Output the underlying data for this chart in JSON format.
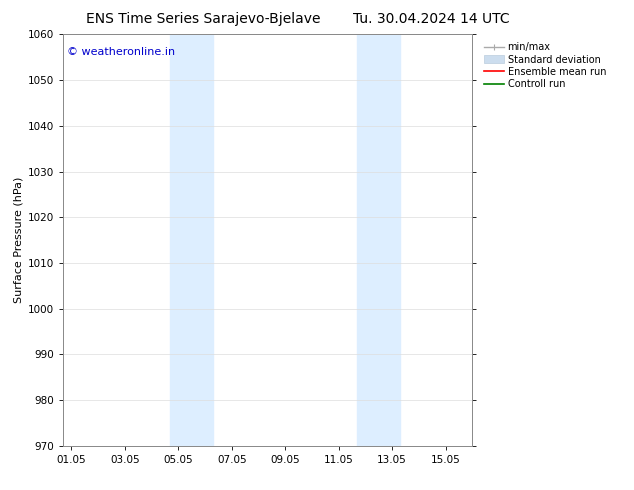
{
  "title_left": "ENS Time Series Sarajevo-Bjelave",
  "title_right": "Tu. 30.04.2024 14 UTC",
  "ylabel": "Surface Pressure (hPa)",
  "ylim": [
    970,
    1060
  ],
  "yticks": [
    970,
    980,
    990,
    1000,
    1010,
    1020,
    1030,
    1040,
    1050,
    1060
  ],
  "xtick_labels": [
    "01.05",
    "03.05",
    "05.05",
    "07.05",
    "09.05",
    "11.05",
    "13.05",
    "15.05"
  ],
  "xtick_positions": [
    0,
    2,
    4,
    6,
    8,
    10,
    12,
    14
  ],
  "xlim": [
    -0.3,
    15.0
  ],
  "shaded_bands": [
    {
      "xmin": 3.7,
      "xmax": 5.3
    },
    {
      "xmin": 10.7,
      "xmax": 12.3
    }
  ],
  "shaded_color": "#ddeeff",
  "watermark_text": "© weatheronline.in",
  "watermark_color": "#0000cc",
  "legend_entries": [
    {
      "label": "min/max",
      "color": "#aaaaaa",
      "lw": 1.0
    },
    {
      "label": "Standard deviation",
      "color": "#ccddee",
      "lw": 6
    },
    {
      "label": "Ensemble mean run",
      "color": "red",
      "lw": 1.2
    },
    {
      "label": "Controll run",
      "color": "green",
      "lw": 1.2
    }
  ],
  "bg_color": "#ffffff",
  "grid_color": "#dddddd",
  "title_fontsize": 10,
  "axis_fontsize": 8,
  "tick_fontsize": 7.5,
  "legend_fontsize": 7,
  "watermark_fontsize": 8
}
